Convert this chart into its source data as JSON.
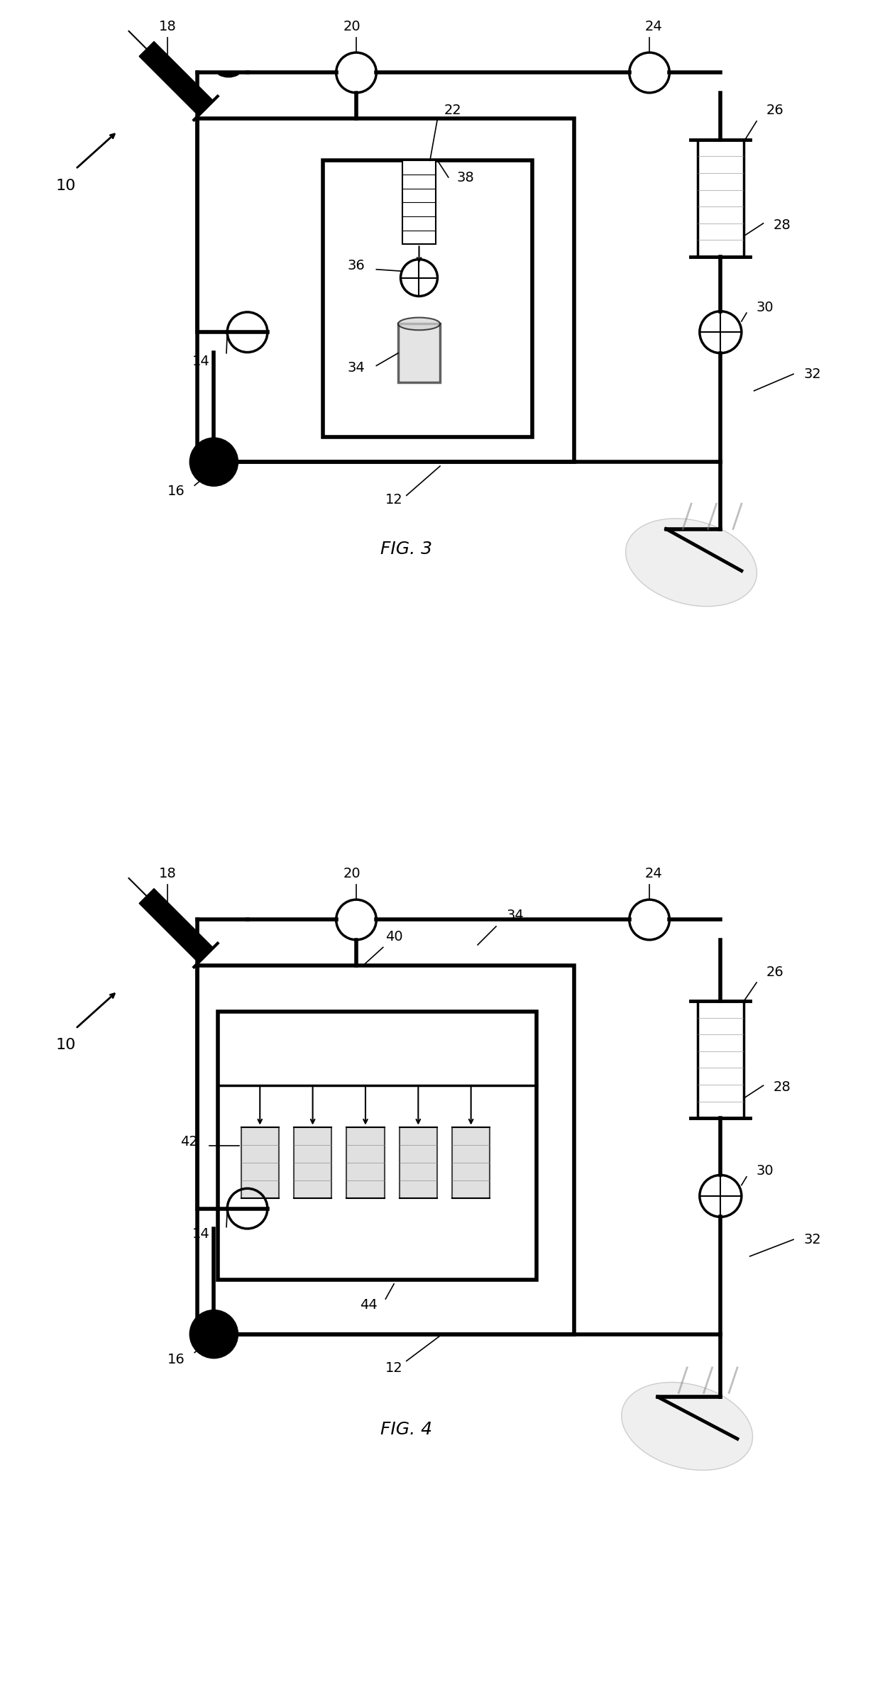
{
  "fig_width": 12.4,
  "fig_height": 24.02,
  "bg_color": "#ffffff",
  "line_color": "#000000",
  "label_fontsize": 14
}
